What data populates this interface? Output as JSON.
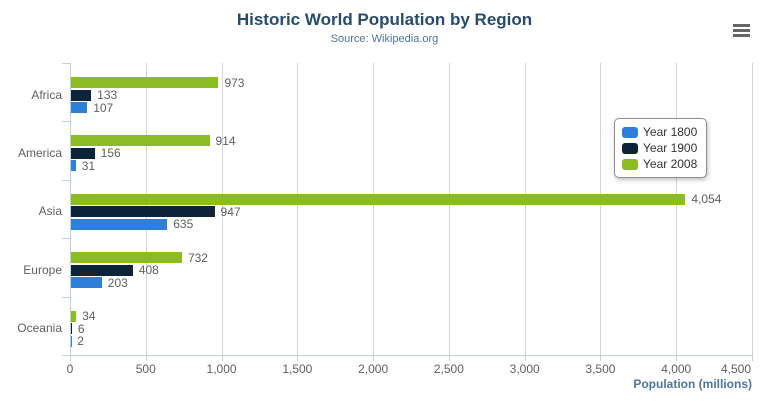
{
  "title": "Historic World Population by Region",
  "subtitle": "Source: Wikipedia.org",
  "icons": {
    "menu": "hamburger-menu-icon"
  },
  "colors": {
    "title": "#274b6d",
    "subtitle": "#4d759e",
    "axis_title": "#4d759e",
    "labels": "#606060",
    "grid_line": "#d3d3d3",
    "axis_line": "#c0d0e0",
    "legend_border": "#909090",
    "legend_text": "#333333",
    "menu_icon": "#666666",
    "series_blue": "#2f7ed8",
    "series_navy": "#0d233a",
    "series_green": "#8bbc21"
  },
  "chart_data": {
    "type": "bar",
    "title": "Historic World Population by Region",
    "subtitle": "Source: Wikipedia.org",
    "categories": [
      "Africa",
      "America",
      "Asia",
      "Europe",
      "Oceania"
    ],
    "series": [
      {
        "name": "Year 1800",
        "color": "#2f7ed8",
        "values": [
          107,
          31,
          635,
          203,
          2
        ]
      },
      {
        "name": "Year 1900",
        "color": "#0d233a",
        "values": [
          133,
          156,
          947,
          408,
          6
        ]
      },
      {
        "name": "Year 2008",
        "color": "#8bbc21",
        "values": [
          973,
          914,
          4054,
          732,
          34
        ]
      }
    ],
    "series_display_order_top_to_bottom": [
      "Year 2008",
      "Year 1900",
      "Year 1800"
    ],
    "xlabel": "Population (millions)",
    "ylabel": "",
    "xlim": [
      0,
      4500
    ],
    "x_ticks": [
      0,
      500,
      1000,
      1500,
      2000,
      2500,
      3000,
      3500,
      4000,
      4500
    ],
    "grid": true,
    "legend_position": "right",
    "data_labels": true,
    "thousands_separator": ","
  }
}
